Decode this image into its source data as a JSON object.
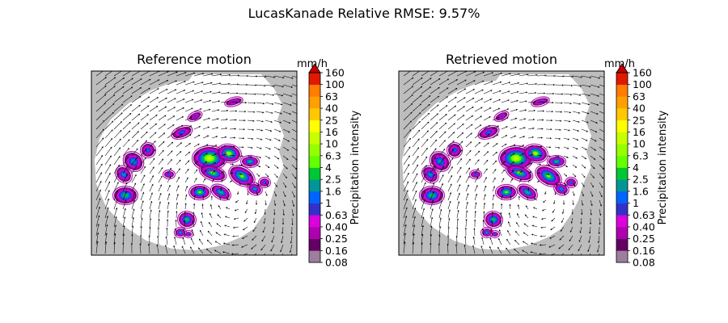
{
  "figure": {
    "suptitle": "LucasKanade Relative RMSE: 9.57%"
  },
  "chart_data": [
    {
      "type": "heatmap",
      "title": "Reference motion",
      "xlabel": "",
      "ylabel": "",
      "axis_ticks": "none",
      "background": "radar mask (grey outside coverage, white inside)",
      "overlay": "motion vector quiver (black arrows)",
      "colorbar": {
        "unit_label": "mm/h",
        "label": "Precipitation intensity",
        "ticks": [
          "0.08",
          "0.16",
          "0.25",
          "0.40",
          "0.63",
          "1",
          "1.6",
          "2.5",
          "4",
          "6.3",
          "10",
          "16",
          "25",
          "40",
          "63",
          "100",
          "160"
        ],
        "colors": [
          "#9c7f9c",
          "#640064",
          "#af00af",
          "#dc00dc",
          "#3232c8",
          "#0064ff",
          "#009696",
          "#00c832",
          "#64ff00",
          "#96ff00",
          "#c8ff00",
          "#ffff00",
          "#ffc800",
          "#ffa000",
          "#ff7d00",
          "#e11900"
        ],
        "extend_max_color": "#c80000"
      }
    },
    {
      "type": "heatmap",
      "title": "Retrieved motion",
      "xlabel": "",
      "ylabel": "",
      "axis_ticks": "none",
      "background": "radar mask (grey outside coverage, white inside)",
      "overlay": "motion vector quiver (black arrows)",
      "colorbar": {
        "unit_label": "mm/h",
        "label": "Precipitation intensity",
        "ticks": [
          "0.08",
          "0.16",
          "0.25",
          "0.40",
          "0.63",
          "1",
          "1.6",
          "2.5",
          "4",
          "6.3",
          "10",
          "16",
          "25",
          "40",
          "63",
          "100",
          "160"
        ],
        "colors": [
          "#9c7f9c",
          "#640064",
          "#af00af",
          "#dc00dc",
          "#3232c8",
          "#0064ff",
          "#009696",
          "#00c832",
          "#64ff00",
          "#96ff00",
          "#c8ff00",
          "#ffff00",
          "#ffc800",
          "#ffa000",
          "#ff7d00",
          "#e11900"
        ],
        "extend_max_color": "#c80000"
      }
    }
  ],
  "style": {
    "mask_grey": "#bdbdbd",
    "arrow_color": "#000000"
  }
}
